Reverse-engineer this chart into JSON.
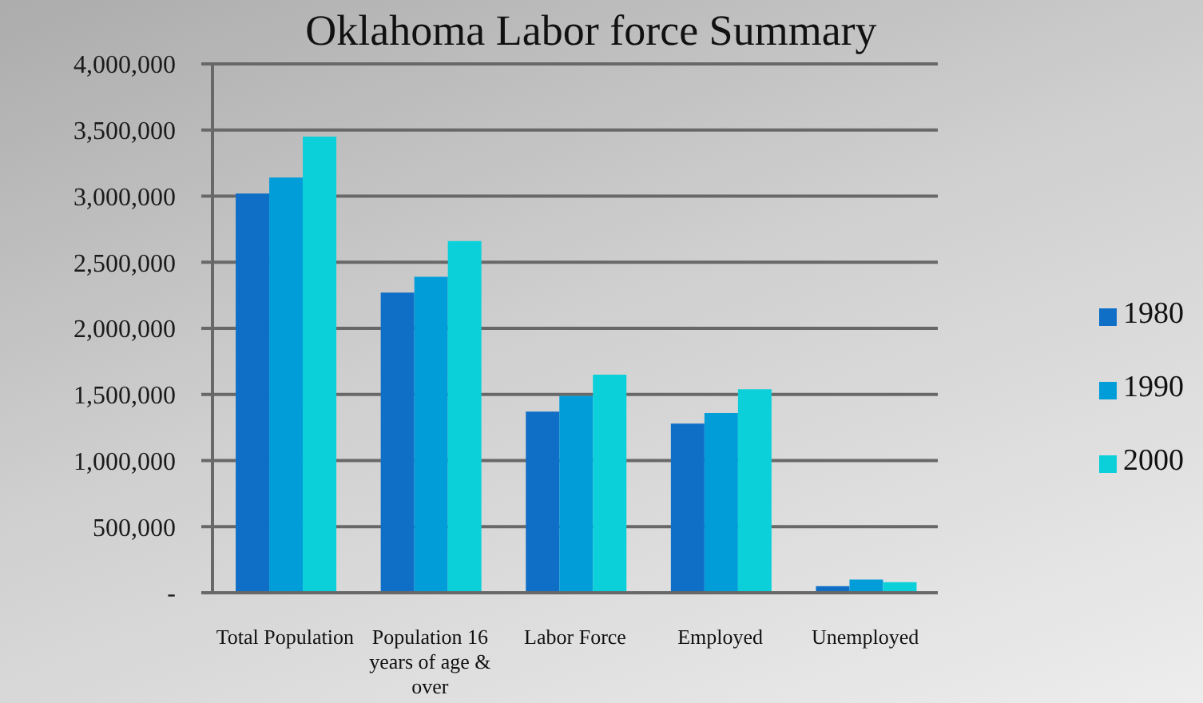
{
  "chart_data": {
    "type": "bar",
    "title": "Oklahoma Labor force Summary",
    "categories": [
      "Total Population",
      "Population 16 years of age & over",
      "Labor Force",
      "Employed",
      "Unemployed"
    ],
    "series": [
      {
        "name": "1980",
        "color": "#0f6fc6",
        "values": [
          3020000,
          2270000,
          1370000,
          1280000,
          50000
        ]
      },
      {
        "name": "1990",
        "color": "#009dd9",
        "values": [
          3140000,
          2390000,
          1490000,
          1360000,
          100000
        ]
      },
      {
        "name": "2000",
        "color": "#0bd0d9",
        "values": [
          3450000,
          2660000,
          1650000,
          1540000,
          80000
        ]
      }
    ],
    "ylim": [
      0,
      4000000
    ],
    "yticks": [
      {
        "value": 0,
        "label": "-"
      },
      {
        "value": 500000,
        "label": "500,000"
      },
      {
        "value": 1000000,
        "label": "1,000,000"
      },
      {
        "value": 1500000,
        "label": "1,500,000"
      },
      {
        "value": 2000000,
        "label": "2,000,000"
      },
      {
        "value": 2500000,
        "label": "2,500,000"
      },
      {
        "value": 3000000,
        "label": "3,000,000"
      },
      {
        "value": 3500000,
        "label": "3,500,000"
      },
      {
        "value": 4000000,
        "label": "4,000,000"
      }
    ],
    "grid": "y",
    "legend": "right"
  }
}
